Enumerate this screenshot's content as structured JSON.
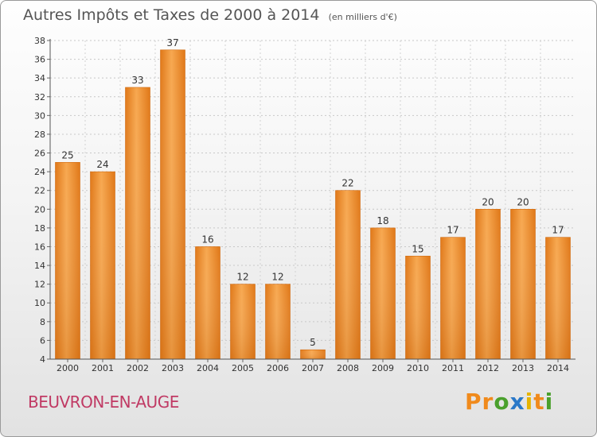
{
  "chart_data": {
    "type": "bar",
    "title": "Autres Impôts et Taxes de 2000 à 2014",
    "unit_note": "(en milliers d'€)",
    "categories": [
      "2000",
      "2001",
      "2002",
      "2003",
      "2004",
      "2005",
      "2006",
      "2007",
      "2008",
      "2009",
      "2010",
      "2011",
      "2012",
      "2013",
      "2014"
    ],
    "values": [
      25,
      24,
      33,
      37,
      16,
      12,
      12,
      5,
      22,
      18,
      15,
      17,
      20,
      20,
      17
    ],
    "ylim": [
      4,
      38
    ],
    "yticks": [
      4,
      6,
      8,
      10,
      12,
      14,
      16,
      18,
      20,
      22,
      24,
      26,
      28,
      30,
      32,
      34,
      36,
      38
    ],
    "xlabel": "",
    "ylabel": "",
    "grid": true,
    "bar_color": "#f0922e"
  },
  "commune": "BEUVRON-EN-AUGE",
  "logo": {
    "letters": [
      "P",
      "r",
      "o",
      "x",
      "i",
      "t",
      "i"
    ],
    "colors": [
      "#f08a1c",
      "#f08a1c",
      "#4aa02c",
      "#2a78c8",
      "#e6b400",
      "#f08a1c",
      "#4aa02c"
    ]
  }
}
